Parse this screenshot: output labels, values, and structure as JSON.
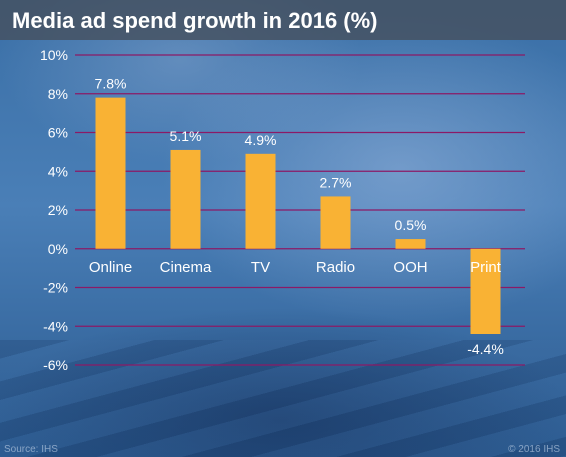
{
  "title": "Media ad spend growth in 2016 (%)",
  "source": "Source: IHS",
  "copyright": "© 2016 IHS",
  "colors": {
    "bar": "#f9b234",
    "gridline": "#8b1a66",
    "text": "#ffffff"
  },
  "chart_data": {
    "type": "bar",
    "title": "Media ad spend growth in 2016 (%)",
    "categories": [
      "Online",
      "Cinema",
      "TV",
      "Radio",
      "OOH",
      "Print"
    ],
    "values": [
      7.8,
      5.1,
      4.9,
      2.7,
      0.5,
      -4.4
    ],
    "value_labels": [
      "7.8%",
      "5.1%",
      "4.9%",
      "2.7%",
      "0.5%",
      "-4.4%"
    ],
    "ylim": [
      -6,
      10
    ],
    "yticks": [
      10,
      8,
      6,
      4,
      2,
      0,
      -2,
      -4,
      -6
    ],
    "ytick_labels": [
      "10%",
      "8%",
      "6%",
      "4%",
      "2%",
      "0%",
      "-2%",
      "-4%",
      "-6%"
    ],
    "xlabel": "",
    "ylabel": "",
    "grid": true,
    "legend": "none"
  }
}
